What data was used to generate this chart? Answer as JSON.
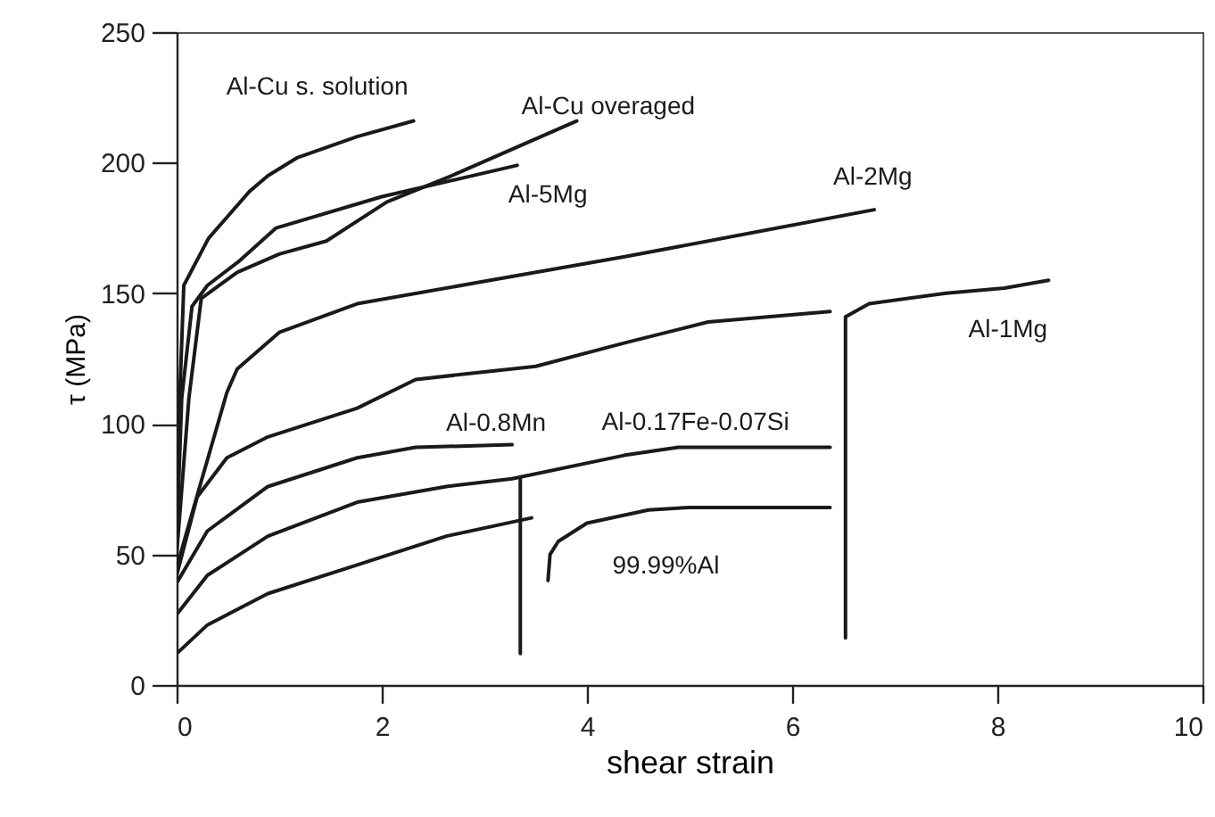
{
  "chart_data": {
    "type": "line",
    "xlabel": "shear strain",
    "ylabel": "τ (MPa)",
    "xlim": [
      0,
      10
    ],
    "ylim": [
      0,
      250
    ],
    "xticks": [
      0,
      2,
      4,
      6,
      8,
      10
    ],
    "yticks": [
      0,
      50,
      100,
      150,
      200,
      250
    ],
    "series": [
      {
        "name": "Al-Cu s. solution",
        "color": "#1a1a1a",
        "x": [
          0,
          0.03,
          0.07,
          0.31,
          0.71,
          0.89,
          1.18,
          1.76,
          2.31
        ],
        "values": [
          55,
          110,
          153,
          171,
          189,
          195,
          202,
          210,
          216
        ]
      },
      {
        "name": "Al-Cu overaged",
        "color": "#1a1a1a",
        "x": [
          0,
          0.12,
          0.24,
          0.59,
          1.0,
          1.46,
          2.05,
          2.68,
          3.9
        ],
        "values": [
          50,
          110,
          148,
          158,
          165,
          170,
          185,
          195,
          216
        ]
      },
      {
        "name": "Al-5Mg",
        "color": "#1a1a1a",
        "x": [
          0,
          0.05,
          0.15,
          0.3,
          0.6,
          0.97,
          2.0,
          3.32
        ],
        "values": [
          55,
          110,
          145,
          153,
          162,
          175,
          187,
          199
        ]
      },
      {
        "name": "Al-2Mg",
        "color": "#1a1a1a",
        "x": [
          0,
          0.24,
          0.49,
          0.59,
          1.0,
          1.76,
          2.92,
          4.37,
          6.8
        ],
        "values": [
          45,
          78,
          112,
          121,
          135,
          146,
          154,
          164,
          182
        ]
      },
      {
        "color": "#1a1a1a",
        "x": [
          0,
          0.2,
          0.49,
          0.89,
          1.76,
          2.33,
          3.5,
          4.37,
          5.18,
          6.37
        ],
        "values": [
          42,
          72,
          87,
          95,
          106,
          117,
          122,
          131,
          139,
          143
        ]
      },
      {
        "name": "Al-1Mg",
        "color": "#1a1a1a",
        "x": [
          6.52,
          6.52,
          6.75,
          7.5,
          8.07,
          8.5
        ],
        "values": [
          18,
          141,
          146,
          150,
          152,
          155
        ]
      },
      {
        "name": "Al-0.8Mn",
        "color": "#1a1a1a",
        "x": [
          0,
          0.3,
          0.89,
          1.76,
          2.33,
          3.27
        ],
        "values": [
          39,
          59,
          76,
          87,
          91,
          92
        ]
      },
      {
        "name": "Al-0.17Fe-0.07Si",
        "color": "#1a1a1a",
        "x": [
          0,
          0.3,
          0.89,
          1.76,
          2.63,
          3.27,
          4.37,
          4.89,
          6.37
        ],
        "values": [
          27,
          42,
          57,
          70,
          76,
          79,
          88,
          91,
          91
        ]
      },
      {
        "color": "#1a1a1a",
        "x": [
          3.35,
          3.35
        ],
        "values": [
          79,
          12
        ]
      },
      {
        "color": "#1a1a1a",
        "x": [
          0,
          0.3,
          0.89,
          1.76,
          2.63,
          3.46
        ],
        "values": [
          12,
          23,
          35,
          46,
          57,
          64
        ]
      },
      {
        "name": "99.99%Al",
        "color": "#1a1a1a",
        "x": [
          3.62,
          3.64,
          3.72,
          4.0,
          4.6,
          5.0,
          6.37
        ],
        "values": [
          40,
          50,
          55,
          62,
          67,
          68,
          68
        ]
      }
    ]
  }
}
